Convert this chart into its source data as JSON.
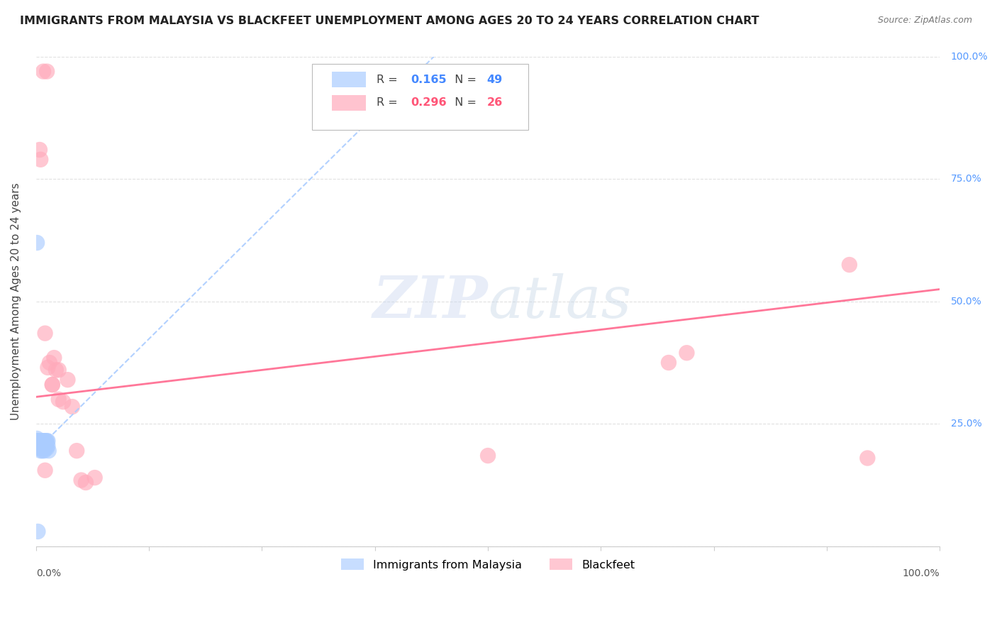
{
  "title": "IMMIGRANTS FROM MALAYSIA VS BLACKFEET UNEMPLOYMENT AMONG AGES 20 TO 24 YEARS CORRELATION CHART",
  "source": "Source: ZipAtlas.com",
  "ylabel": "Unemployment Among Ages 20 to 24 years",
  "xlim": [
    0,
    1
  ],
  "ylim": [
    0,
    1
  ],
  "yticks": [
    0.0,
    0.25,
    0.5,
    0.75,
    1.0
  ],
  "xticks": [
    0.0,
    0.125,
    0.25,
    0.375,
    0.5,
    0.625,
    0.75,
    0.875,
    1.0
  ],
  "watermark_zip": "ZIP",
  "watermark_atlas": "atlas",
  "legend_label1": "Immigrants from Malaysia",
  "legend_label2": "Blackfeet",
  "R1": "0.165",
  "N1": "49",
  "R2": "0.296",
  "N2": "26",
  "color_blue": "#aaccff",
  "color_pink": "#ffaabb",
  "color_pink_line": "#ff7799",
  "color_blue_line": "#aaccff",
  "blue_points_x": [
    0.003,
    0.003,
    0.004,
    0.004,
    0.005,
    0.005,
    0.005,
    0.006,
    0.006,
    0.007,
    0.007,
    0.008,
    0.008,
    0.009,
    0.009,
    0.01,
    0.01,
    0.011,
    0.012,
    0.012,
    0.013,
    0.014,
    0.002,
    0.002,
    0.003,
    0.004,
    0.005,
    0.006,
    0.007,
    0.001,
    0.001,
    0.002,
    0.003,
    0.004,
    0.005,
    0.006,
    0.007,
    0.008,
    0.009,
    0.01,
    0.011,
    0.012,
    0.013,
    0.001,
    0.002,
    0.003,
    0.004,
    0.001,
    0.002
  ],
  "blue_points_y": [
    0.215,
    0.205,
    0.21,
    0.2,
    0.215,
    0.205,
    0.195,
    0.21,
    0.2,
    0.205,
    0.195,
    0.21,
    0.2,
    0.205,
    0.195,
    0.21,
    0.2,
    0.205,
    0.21,
    0.2,
    0.205,
    0.195,
    0.215,
    0.205,
    0.215,
    0.21,
    0.215,
    0.205,
    0.215,
    0.22,
    0.21,
    0.215,
    0.215,
    0.215,
    0.215,
    0.215,
    0.215,
    0.215,
    0.215,
    0.215,
    0.215,
    0.215,
    0.215,
    0.215,
    0.215,
    0.215,
    0.215,
    0.62,
    0.03
  ],
  "pink_points_x": [
    0.004,
    0.005,
    0.01,
    0.013,
    0.015,
    0.018,
    0.022,
    0.025,
    0.03,
    0.04,
    0.05,
    0.055,
    0.065,
    0.008,
    0.012,
    0.018,
    0.025,
    0.035,
    0.045,
    0.5,
    0.7,
    0.72,
    0.9,
    0.92,
    0.01,
    0.02
  ],
  "pink_points_y": [
    0.81,
    0.79,
    0.435,
    0.365,
    0.375,
    0.33,
    0.36,
    0.3,
    0.295,
    0.285,
    0.135,
    0.13,
    0.14,
    0.97,
    0.97,
    0.33,
    0.36,
    0.34,
    0.195,
    0.185,
    0.375,
    0.395,
    0.575,
    0.18,
    0.155,
    0.385
  ],
  "blue_trendline_x0": 0.0,
  "blue_trendline_y0": 0.195,
  "blue_trendline_x1": 0.44,
  "blue_trendline_y1": 1.0,
  "pink_trendline_x0": 0.0,
  "pink_trendline_y0": 0.305,
  "pink_trendline_x1": 1.0,
  "pink_trendline_y1": 0.525,
  "background_color": "#ffffff",
  "grid_color": "#e0e0e0",
  "right_axis_color": "#5599ff"
}
